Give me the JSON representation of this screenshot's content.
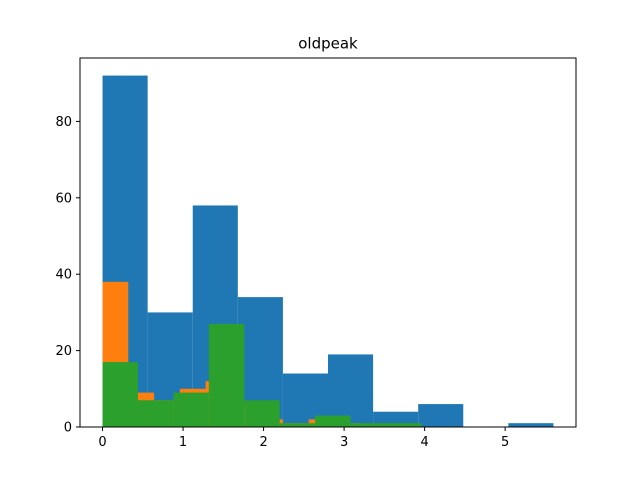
{
  "chart_data": {
    "type": "histogram",
    "title": "oldpeak",
    "xlabel": "",
    "ylabel": "",
    "xlim": [
      -0.28,
      5.88
    ],
    "ylim": [
      0,
      96.6
    ],
    "xticks": [
      0,
      1,
      2,
      3,
      4,
      5
    ],
    "yticks": [
      0,
      20,
      40,
      60,
      80
    ],
    "grid": false,
    "series": [
      {
        "color": "#1f77b4",
        "bins": [
          {
            "x0": 0.0,
            "x1": 0.56,
            "count": 92
          },
          {
            "x0": 0.56,
            "x1": 1.12,
            "count": 30
          },
          {
            "x0": 1.12,
            "x1": 1.68,
            "count": 58
          },
          {
            "x0": 1.68,
            "x1": 2.24,
            "count": 34
          },
          {
            "x0": 2.24,
            "x1": 2.8,
            "count": 14
          },
          {
            "x0": 2.8,
            "x1": 3.36,
            "count": 19
          },
          {
            "x0": 3.36,
            "x1": 3.92,
            "count": 4
          },
          {
            "x0": 3.92,
            "x1": 4.48,
            "count": 6
          },
          {
            "x0": 4.48,
            "x1": 5.04,
            "count": 0
          },
          {
            "x0": 5.04,
            "x1": 5.6,
            "count": 1
          }
        ]
      },
      {
        "color": "#ff7f0e",
        "bins": [
          {
            "x0": 0.0,
            "x1": 0.32,
            "count": 38
          },
          {
            "x0": 0.32,
            "x1": 0.64,
            "count": 9
          },
          {
            "x0": 0.64,
            "x1": 0.96,
            "count": 7
          },
          {
            "x0": 0.96,
            "x1": 1.28,
            "count": 10
          },
          {
            "x0": 1.28,
            "x1": 1.6,
            "count": 12
          },
          {
            "x0": 1.6,
            "x1": 1.92,
            "count": 6
          },
          {
            "x0": 1.92,
            "x1": 2.24,
            "count": 2
          },
          {
            "x0": 2.24,
            "x1": 2.56,
            "count": 1
          },
          {
            "x0": 2.56,
            "x1": 2.88,
            "count": 2
          },
          {
            "x0": 2.88,
            "x1": 3.2,
            "count": 1
          }
        ]
      },
      {
        "color": "#2ca02c",
        "bins": [
          {
            "x0": 0.0,
            "x1": 0.44,
            "count": 17
          },
          {
            "x0": 0.44,
            "x1": 0.88,
            "count": 7
          },
          {
            "x0": 0.88,
            "x1": 1.32,
            "count": 9
          },
          {
            "x0": 1.32,
            "x1": 1.76,
            "count": 27
          },
          {
            "x0": 1.76,
            "x1": 2.2,
            "count": 7
          },
          {
            "x0": 2.2,
            "x1": 2.64,
            "count": 1
          },
          {
            "x0": 2.64,
            "x1": 3.08,
            "count": 3
          },
          {
            "x0": 3.08,
            "x1": 3.52,
            "count": 1
          },
          {
            "x0": 3.52,
            "x1": 3.96,
            "count": 1
          },
          {
            "x0": 3.96,
            "x1": 4.4,
            "count": 0
          }
        ]
      }
    ]
  }
}
